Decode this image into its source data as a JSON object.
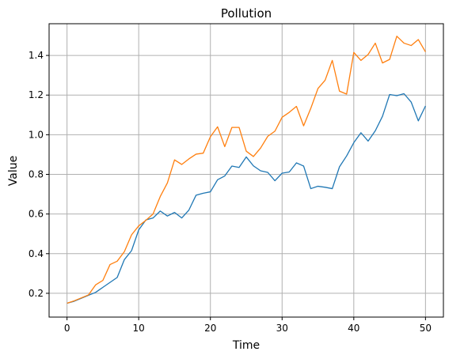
{
  "chart_data": {
    "type": "line",
    "title": "Pollution",
    "xlabel": "Time",
    "ylabel": "Value",
    "xlim": [
      -2.5,
      52.5
    ],
    "ylim": [
      0.08,
      1.56
    ],
    "xticks": [
      0,
      10,
      20,
      30,
      40,
      50
    ],
    "yticks": [
      0.2,
      0.4,
      0.6,
      0.8,
      1.0,
      1.2,
      1.4
    ],
    "ytick_labels": [
      "0.2",
      "0.4",
      "0.6",
      "0.8",
      "1.0",
      "1.2",
      "1.4"
    ],
    "grid": true,
    "x": [
      0,
      1,
      2,
      3,
      4,
      5,
      6,
      7,
      8,
      9,
      10,
      11,
      12,
      13,
      14,
      15,
      16,
      17,
      18,
      19,
      20,
      21,
      22,
      23,
      24,
      25,
      26,
      27,
      28,
      29,
      30,
      31,
      32,
      33,
      34,
      35,
      36,
      37,
      38,
      39,
      40,
      41,
      42,
      43,
      44,
      45,
      46,
      47,
      48,
      49,
      50
    ],
    "series": [
      {
        "color": "#1f77b4",
        "values": [
          0.15,
          0.16,
          0.175,
          0.19,
          0.205,
          0.23,
          0.255,
          0.28,
          0.37,
          0.415,
          0.52,
          0.57,
          0.58,
          0.615,
          0.59,
          0.608,
          0.58,
          0.62,
          0.695,
          0.705,
          0.712,
          0.773,
          0.792,
          0.842,
          0.835,
          0.888,
          0.843,
          0.818,
          0.81,
          0.768,
          0.806,
          0.812,
          0.858,
          0.842,
          0.728,
          0.74,
          0.735,
          0.728,
          0.838,
          0.893,
          0.96,
          1.01,
          0.968,
          1.02,
          1.093,
          1.203,
          1.197,
          1.207,
          1.165,
          1.07,
          1.145
        ]
      },
      {
        "color": "#ff7f0e",
        "values": [
          0.15,
          0.162,
          0.177,
          0.192,
          0.243,
          0.265,
          0.345,
          0.362,
          0.41,
          0.495,
          0.54,
          0.568,
          0.6,
          0.688,
          0.757,
          0.873,
          0.85,
          0.878,
          0.902,
          0.907,
          0.99,
          1.04,
          0.94,
          1.037,
          1.037,
          0.917,
          0.89,
          0.933,
          0.992,
          1.018,
          1.088,
          1.113,
          1.143,
          1.045,
          1.133,
          1.233,
          1.275,
          1.375,
          1.22,
          1.205,
          1.415,
          1.375,
          1.405,
          1.462,
          1.362,
          1.38,
          1.497,
          1.462,
          1.45,
          1.48,
          1.418
        ]
      }
    ]
  }
}
